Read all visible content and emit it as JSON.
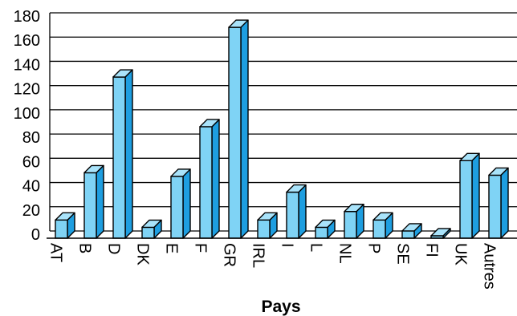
{
  "chart_data": {
    "type": "bar",
    "categories": [
      "AT",
      "B",
      "D",
      "DK",
      "E",
      "F",
      "GR",
      "IRL",
      "I",
      "L",
      "NL",
      "P",
      "SE",
      "FI",
      "UK",
      "Autres"
    ],
    "values": [
      15,
      54,
      133,
      9,
      51,
      92,
      174,
      15,
      38,
      9,
      22,
      15,
      6,
      2,
      64,
      52
    ],
    "title": "",
    "xlabel": "Pays",
    "ylabel": "",
    "ylim": [
      0,
      180
    ],
    "yticks": [
      0,
      20,
      40,
      60,
      80,
      100,
      120,
      140,
      160,
      180
    ],
    "grid": true,
    "legend": "none",
    "colors": {
      "bar_front": "#7fd3f5",
      "bar_side": "#1e9ee0",
      "bar_top": "#a9e3fa",
      "outline": "#000000",
      "grid": "#000000"
    }
  }
}
